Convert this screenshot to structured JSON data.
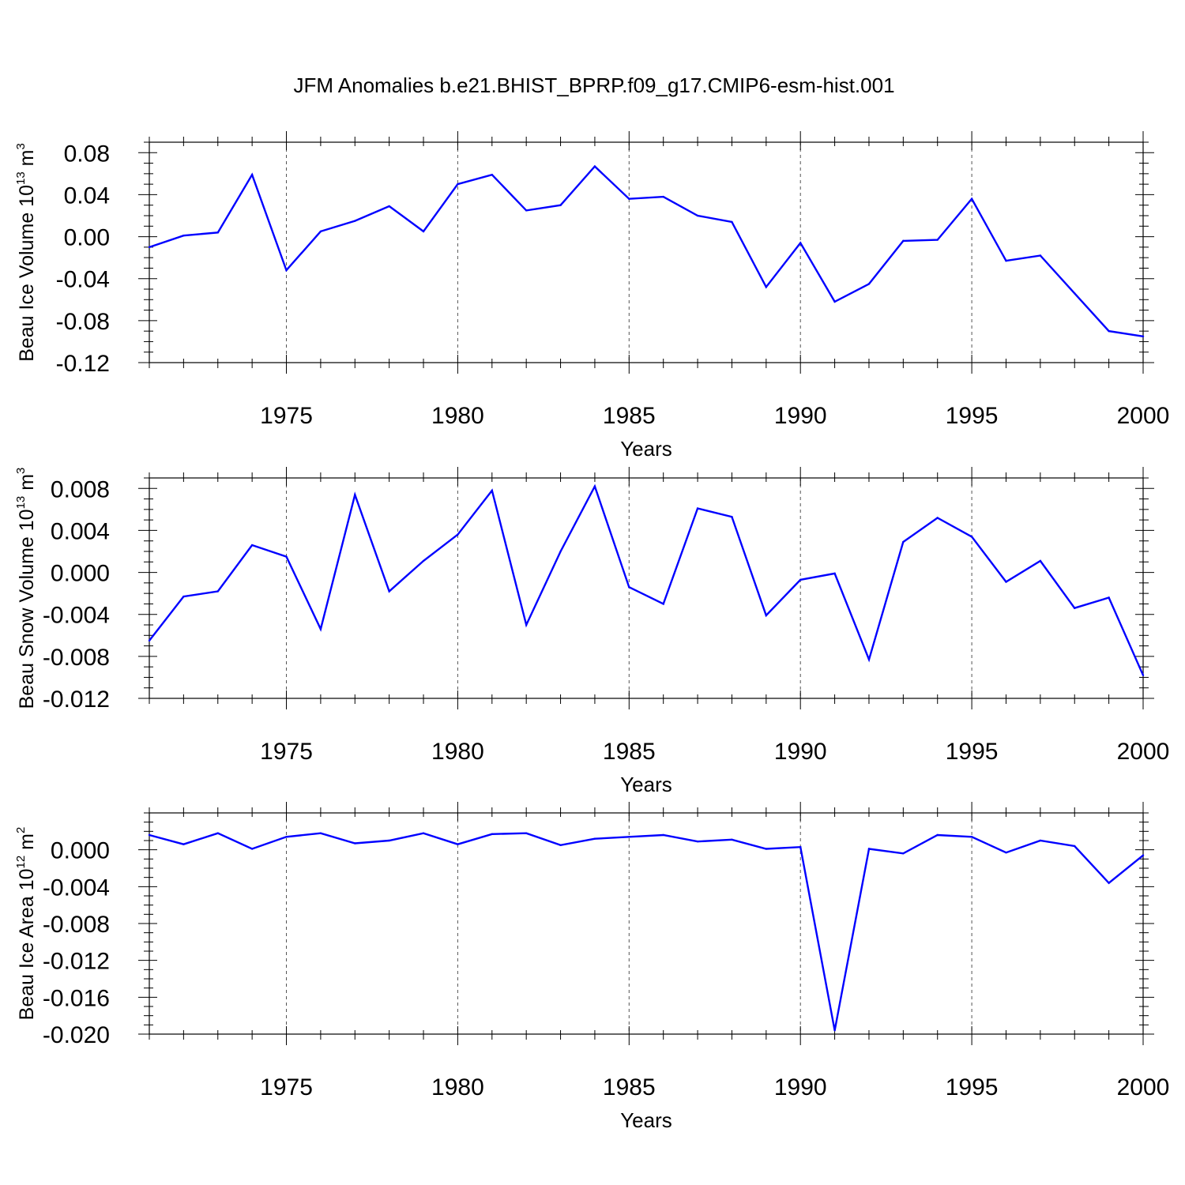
{
  "figure_title": "JFM Anomalies b.e21.BHIST_BPRP.f09_g17.CMIP6-esm-hist.001",
  "colors": {
    "line": "#0000ff",
    "axis": "#000000",
    "grid": "#555555"
  },
  "chart_data": [
    {
      "type": "line",
      "name": "ice-volume",
      "ylabel": "Beau Ice Volume 10",
      "ylabel_exp": "13",
      "ylabel_unit": " m",
      "ylabel_unit_exp": "3",
      "xlabel": "Years",
      "xlim": [
        1971,
        2000
      ],
      "ylim": [
        -0.12,
        0.09
      ],
      "yticks": [
        -0.12,
        -0.08,
        -0.04,
        0.0,
        0.04,
        0.08
      ],
      "ytick_labels": [
        "-0.12",
        "-0.08",
        "-0.04",
        "0.00",
        "0.04",
        "0.08"
      ],
      "yminor_step": 0.01,
      "xticks": [
        1975,
        1980,
        1985,
        1990,
        1995,
        2000
      ],
      "xtick_labels": [
        "1975",
        "1980",
        "1985",
        "1990",
        "1995",
        "2000"
      ],
      "x": [
        1971,
        1972,
        1973,
        1974,
        1975,
        1976,
        1977,
        1978,
        1979,
        1980,
        1981,
        1982,
        1983,
        1984,
        1985,
        1986,
        1987,
        1988,
        1989,
        1990,
        1991,
        1992,
        1993,
        1994,
        1995,
        1996,
        1997,
        1998,
        1999,
        2000
      ],
      "values": [
        -0.01,
        0.001,
        0.004,
        0.059,
        -0.032,
        0.005,
        0.015,
        0.029,
        0.005,
        0.05,
        0.059,
        0.025,
        0.03,
        0.067,
        0.036,
        0.038,
        0.02,
        0.014,
        -0.048,
        -0.006,
        -0.062,
        -0.045,
        -0.004,
        -0.003,
        0.036,
        -0.023,
        -0.018,
        -0.054,
        -0.09,
        -0.095
      ]
    },
    {
      "type": "line",
      "name": "snow-volume",
      "ylabel": "Beau Snow Volume 10",
      "ylabel_exp": "13",
      "ylabel_unit": " m",
      "ylabel_unit_exp": "3",
      "xlabel": "Years",
      "xlim": [
        1971,
        2000
      ],
      "ylim": [
        -0.012,
        0.009
      ],
      "yticks": [
        -0.012,
        -0.008,
        -0.004,
        0.0,
        0.004,
        0.008
      ],
      "ytick_labels": [
        "-0.012",
        "-0.008",
        "-0.004",
        "0.000",
        "0.004",
        "0.008"
      ],
      "yminor_step": 0.001,
      "xticks": [
        1975,
        1980,
        1985,
        1990,
        1995,
        2000
      ],
      "xtick_labels": [
        "1975",
        "1980",
        "1985",
        "1990",
        "1995",
        "2000"
      ],
      "x": [
        1971,
        1972,
        1973,
        1974,
        1975,
        1976,
        1977,
        1978,
        1979,
        1980,
        1981,
        1982,
        1983,
        1984,
        1985,
        1986,
        1987,
        1988,
        1989,
        1990,
        1991,
        1992,
        1993,
        1994,
        1995,
        1996,
        1997,
        1998,
        1999,
        2000
      ],
      "values": [
        -0.0065,
        -0.0023,
        -0.0018,
        0.0026,
        0.0015,
        -0.0054,
        0.0074,
        -0.0018,
        0.0011,
        0.0036,
        0.0078,
        -0.005,
        0.002,
        0.0082,
        -0.0014,
        -0.003,
        0.0061,
        0.0053,
        -0.0041,
        -0.0007,
        -0.0001,
        -0.0083,
        0.0029,
        0.0052,
        0.0034,
        -0.0009,
        0.0011,
        -0.0034,
        -0.0024,
        -0.0098
      ]
    },
    {
      "type": "line",
      "name": "ice-area",
      "ylabel": "Beau Ice Area 10",
      "ylabel_exp": "12",
      "ylabel_unit": " m",
      "ylabel_unit_exp": "2",
      "xlabel": "Years",
      "xlim": [
        1971,
        2000
      ],
      "ylim": [
        -0.02,
        0.004
      ],
      "yticks": [
        -0.02,
        -0.016,
        -0.012,
        -0.008,
        -0.004,
        0.0
      ],
      "ytick_labels": [
        "-0.020",
        "-0.016",
        "-0.012",
        "-0.008",
        "-0.004",
        "0.000"
      ],
      "yminor_step": 0.001,
      "xticks": [
        1975,
        1980,
        1985,
        1990,
        1995,
        2000
      ],
      "xtick_labels": [
        "1975",
        "1980",
        "1985",
        "1990",
        "1995",
        "2000"
      ],
      "x": [
        1971,
        1972,
        1973,
        1974,
        1975,
        1976,
        1977,
        1978,
        1979,
        1980,
        1981,
        1982,
        1983,
        1984,
        1985,
        1986,
        1987,
        1988,
        1989,
        1990,
        1991,
        1992,
        1993,
        1994,
        1995,
        1996,
        1997,
        1998,
        1999,
        2000
      ],
      "values": [
        0.0016,
        0.0006,
        0.0018,
        0.0001,
        0.0014,
        0.0018,
        0.0007,
        0.001,
        0.0018,
        0.0006,
        0.0017,
        0.0018,
        0.0005,
        0.0012,
        0.0014,
        0.0016,
        0.0009,
        0.0011,
        0.0001,
        0.0003,
        -0.0196,
        0.0001,
        -0.0004,
        0.0016,
        0.0014,
        -0.0003,
        0.001,
        0.0004,
        -0.0036,
        -0.0006
      ]
    }
  ]
}
